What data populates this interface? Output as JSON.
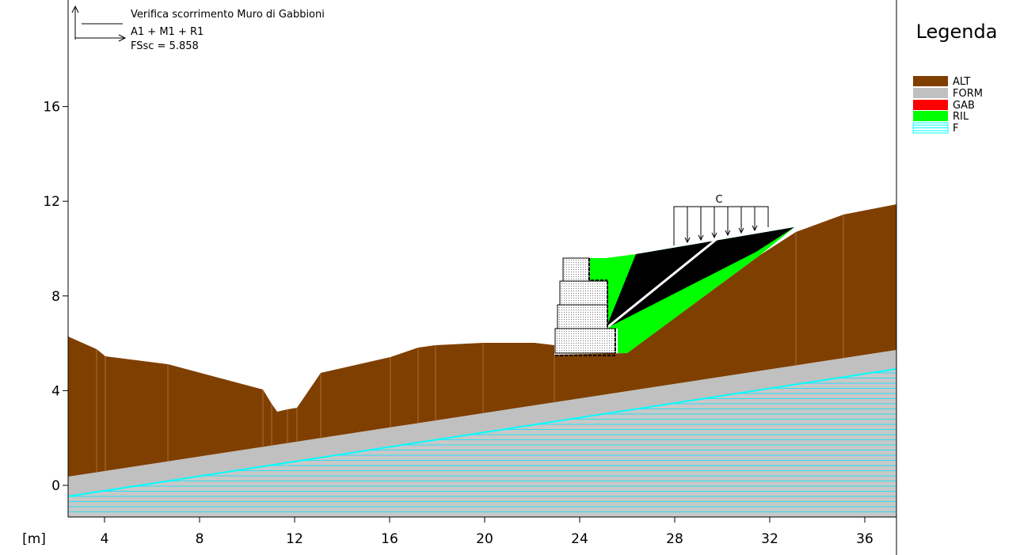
{
  "annotation": {
    "lines": [
      "Verifica scorrimento Muro di Gabbioni",
      "A1 + M1 + R1",
      "FSsc = 5.858"
    ]
  },
  "axes": {
    "x_unit": "[m]",
    "xticks": [
      4,
      8,
      12,
      16,
      20,
      24,
      28,
      32,
      36
    ],
    "yticks": [
      0,
      4,
      8,
      12,
      16
    ]
  },
  "load_label": "C",
  "legend": {
    "title": "Legenda",
    "items": [
      {
        "name": "ALT",
        "color": "#7f3f00"
      },
      {
        "name": "FORM",
        "color": "#c0c0c0"
      },
      {
        "name": "GAB",
        "color": "#ff0000"
      },
      {
        "name": "RIL",
        "color": "#00ff00"
      },
      {
        "name": "F",
        "color": "#00ffff"
      }
    ]
  }
}
